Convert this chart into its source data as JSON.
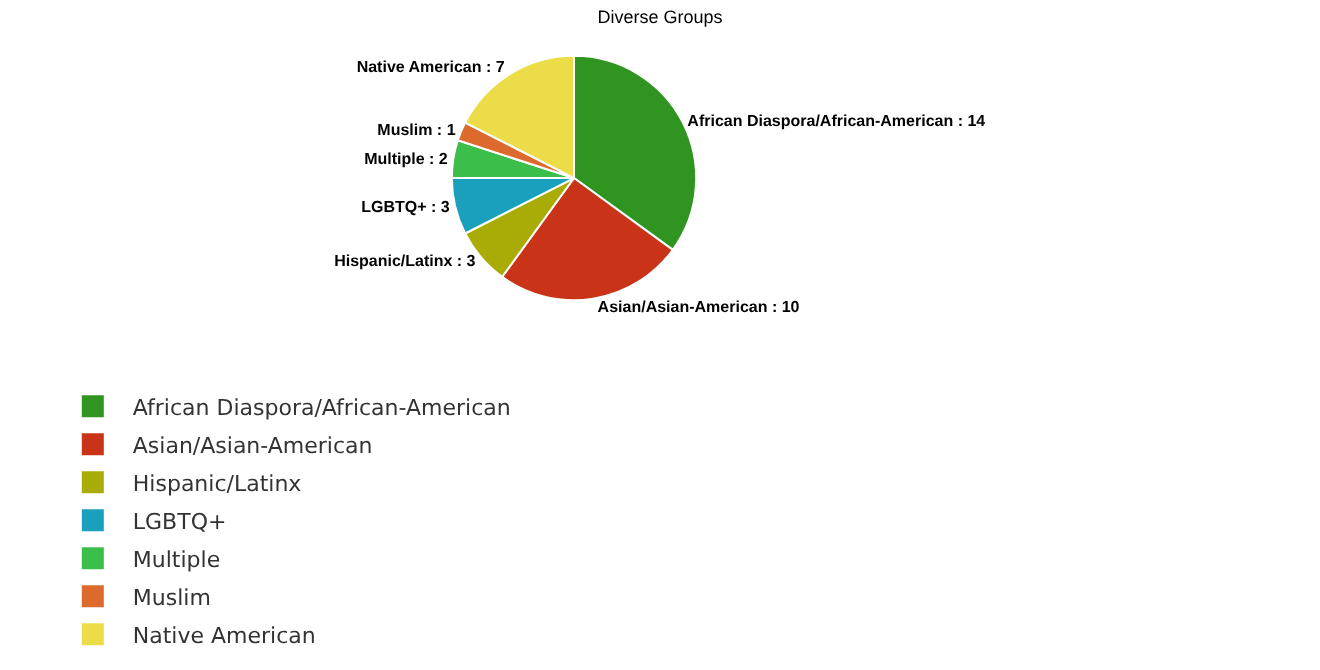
{
  "chart_data": {
    "type": "pie",
    "title": "Diverse Groups",
    "categories": [
      "African Diaspora/African-American",
      "Asian/Asian-American",
      "Hispanic/Latinx",
      "LGBTQ+",
      "Multiple",
      "Muslim",
      "Native American"
    ],
    "values": [
      14,
      10,
      3,
      3,
      2,
      1,
      7
    ],
    "colors": [
      "#2f9420",
      "#c93418",
      "#a9ac06",
      "#1aa0bd",
      "#3cbf4a",
      "#dc6a2c",
      "#ecdc48"
    ],
    "value_labels": [
      ": 14",
      ": 10",
      ": 3",
      ": 3",
      ": 2",
      ": 1",
      ": 7"
    ],
    "legend": "bottom"
  }
}
